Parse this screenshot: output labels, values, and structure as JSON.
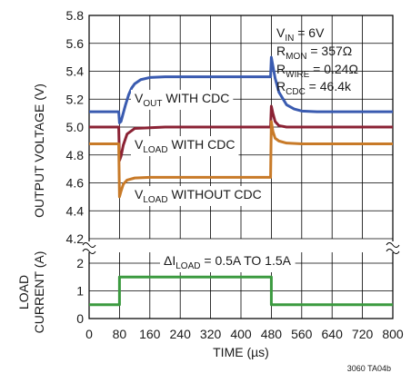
{
  "chart_data": [
    {
      "type": "line",
      "panel": "output-voltage",
      "ylabel": "OUTPUT VOLTAGE (V)",
      "ylim": [
        4.2,
        5.8
      ],
      "yticks": [
        "4.2",
        "4.4",
        "4.6",
        "4.8",
        "5.0",
        "5.2",
        "5.4",
        "5.6",
        "5.8"
      ],
      "xlim": [
        0,
        800
      ],
      "grid": true,
      "series": [
        {
          "name": "VOUT WITH CDC",
          "color": "#3a5bb0",
          "x": [
            0,
            78,
            80,
            84,
            88,
            96,
            104,
            112,
            120,
            136,
            160,
            200,
            300,
            400,
            478,
            480,
            484,
            490,
            500,
            520,
            540,
            560,
            600,
            700,
            800
          ],
          "y": [
            5.11,
            5.11,
            5.03,
            5.04,
            5.08,
            5.16,
            5.23,
            5.28,
            5.31,
            5.34,
            5.355,
            5.36,
            5.36,
            5.36,
            5.36,
            5.5,
            5.44,
            5.35,
            5.25,
            5.16,
            5.13,
            5.115,
            5.11,
            5.11,
            5.11
          ]
        },
        {
          "name": "VLOAD WITH CDC",
          "color": "#8b2234",
          "x": [
            0,
            78,
            80,
            84,
            90,
            100,
            120,
            200,
            300,
            400,
            478,
            480,
            484,
            490,
            500,
            520,
            600,
            700,
            800
          ],
          "y": [
            5.0,
            5.0,
            4.76,
            4.79,
            4.87,
            4.95,
            4.99,
            5.0,
            5.0,
            5.0,
            5.0,
            5.15,
            5.1,
            5.04,
            5.01,
            5.0,
            5.0,
            5.0,
            5.0
          ]
        },
        {
          "name": "VLOAD WITHOUT CDC",
          "color": "#c87a28",
          "x": [
            0,
            78,
            80,
            84,
            90,
            100,
            120,
            160,
            200,
            300,
            400,
            478,
            480,
            484,
            490,
            500,
            520,
            560,
            600,
            700,
            800
          ],
          "y": [
            4.88,
            4.88,
            4.5,
            4.54,
            4.59,
            4.62,
            4.635,
            4.64,
            4.64,
            4.64,
            4.64,
            4.64,
            5.04,
            4.97,
            4.92,
            4.9,
            4.885,
            4.88,
            4.88,
            4.88,
            4.88
          ]
        }
      ],
      "annotations": [
        {
          "id": "vin",
          "main": "V",
          "sub": "IN",
          "tail": " = 6V"
        },
        {
          "id": "rmon",
          "main": "R",
          "sub": "MON",
          "tail": " = 357Ω"
        },
        {
          "id": "rwire",
          "main": "R",
          "sub": "WIRE",
          "tail": " = 0.24Ω"
        },
        {
          "id": "rcdc",
          "main": "R",
          "sub": "CDC",
          "tail": " = 46.4k"
        },
        {
          "id": "vout-label",
          "main": "V",
          "sub": "OUT",
          "tail": " WITH CDC"
        },
        {
          "id": "vload-cdc-label",
          "main": "V",
          "sub": "LOAD",
          "tail": " WITH CDC"
        },
        {
          "id": "vload-nocdc-label",
          "main": "V",
          "sub": "LOAD",
          "tail": " WITHOUT CDC"
        }
      ]
    },
    {
      "type": "line",
      "panel": "load-current",
      "ylabel_lines": [
        "LOAD",
        "CURRENT (A)"
      ],
      "ylim": [
        0,
        2
      ],
      "yticks": [
        "0",
        "1",
        "2"
      ],
      "xlabel": "TIME (µs)",
      "xlim": [
        0,
        800
      ],
      "xticks": [
        "0",
        "80",
        "160",
        "240",
        "320",
        "400",
        "480",
        "560",
        "640",
        "720",
        "800"
      ],
      "grid": true,
      "series": [
        {
          "name": "ΔILOAD = 0.5A TO 1.5A",
          "color": "#3b9a3f",
          "x": [
            0,
            80,
            80,
            480,
            480,
            800
          ],
          "y": [
            0.5,
            0.5,
            1.5,
            1.5,
            0.5,
            0.5
          ]
        }
      ],
      "annotations": [
        {
          "id": "delta-iload",
          "main": "ΔI",
          "sub": "LOAD",
          "tail": " = 0.5A TO 1.5A"
        }
      ]
    }
  ],
  "figure_id": "3060 TA04b"
}
